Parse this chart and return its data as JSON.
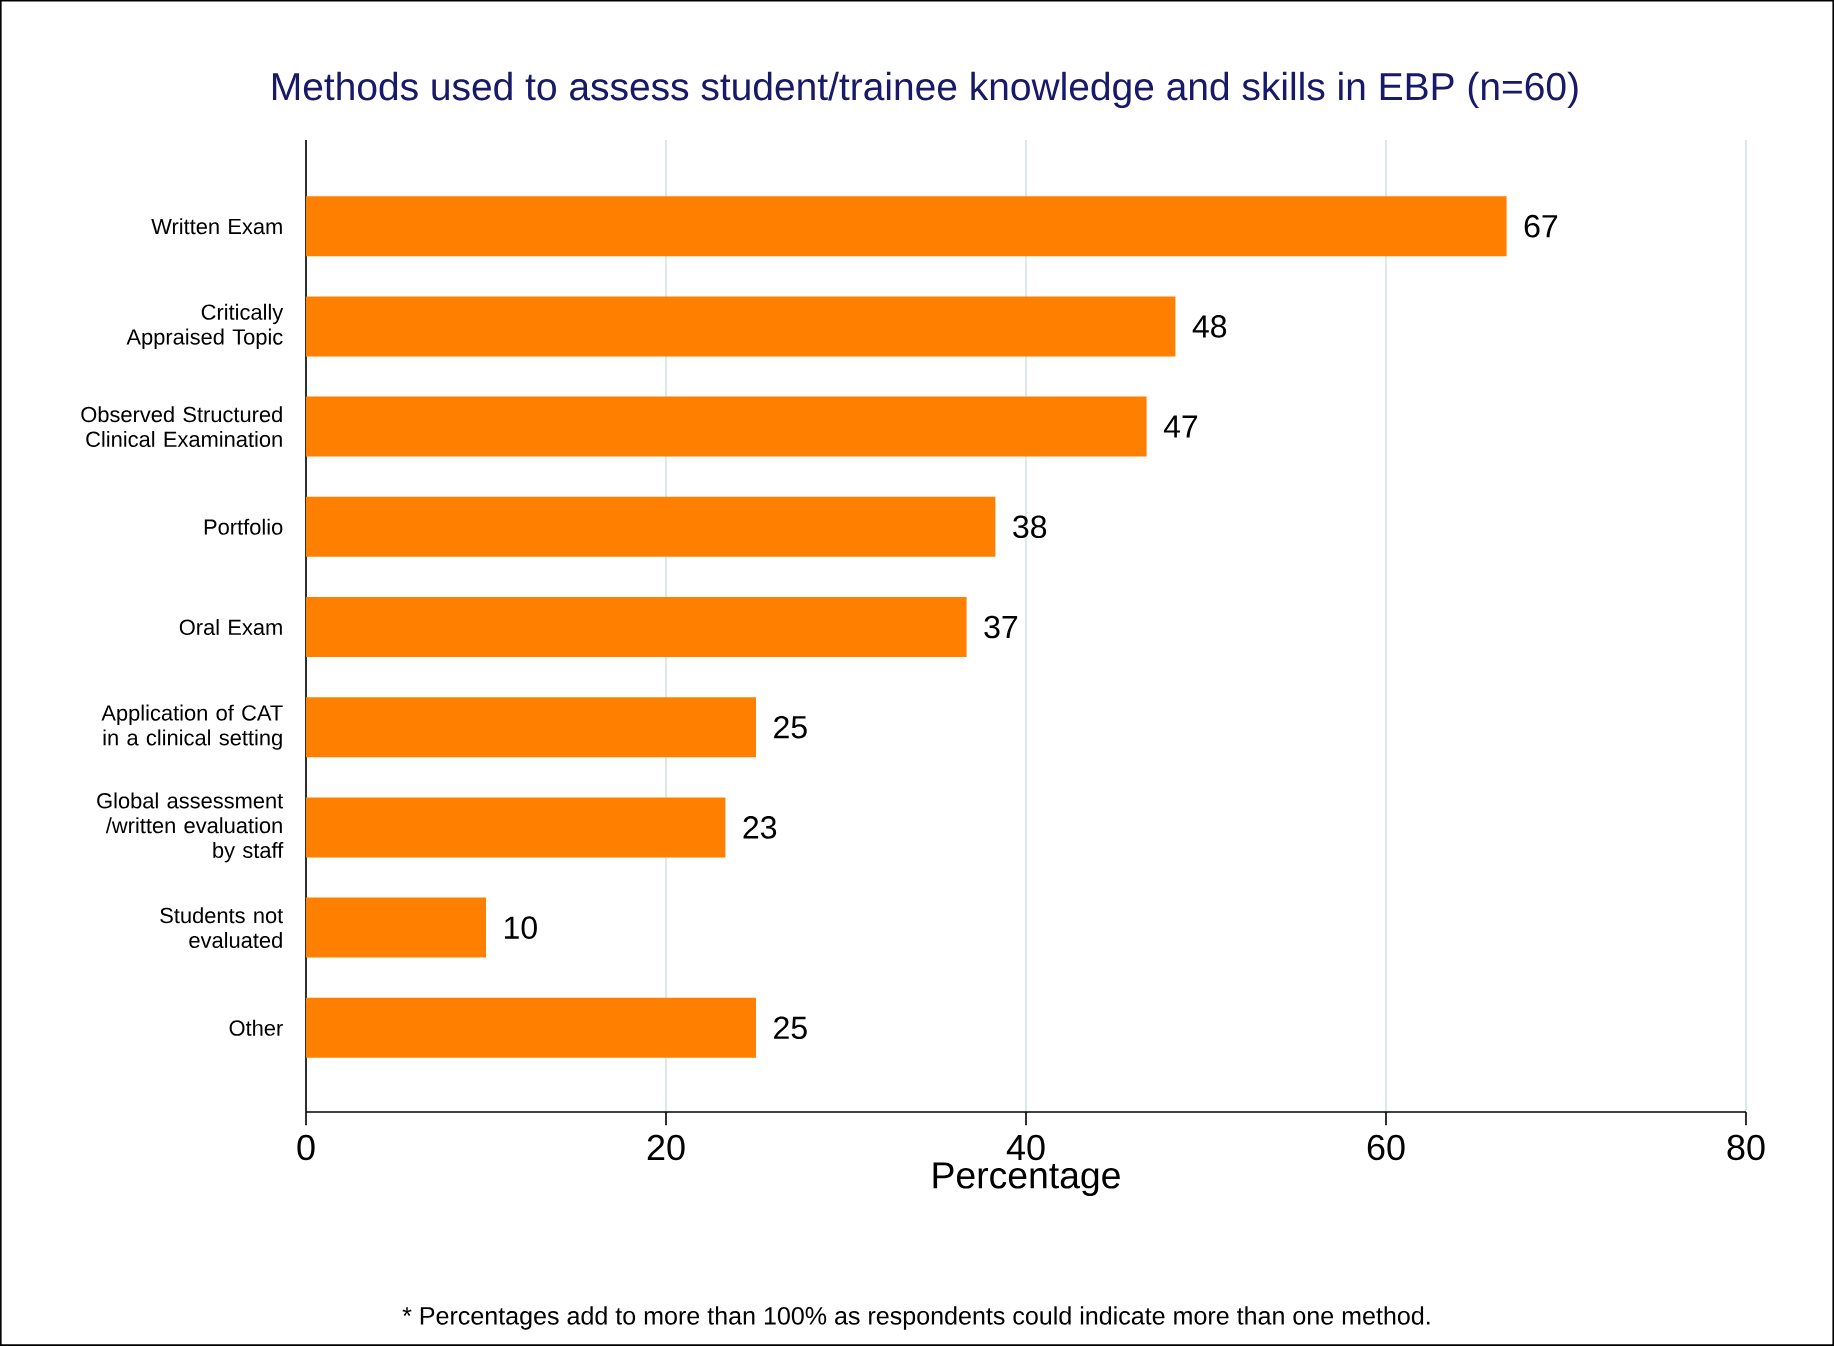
{
  "chart_data": {
    "type": "bar",
    "orientation": "horizontal",
    "title": "Methods used to assess student/trainee knowledge and skills in EBP (n=60)",
    "xlabel": "Percentage",
    "categories": [
      "Written Exam",
      "Critically Appraised Topic",
      "Observed Structured Clinical Examination",
      "Portfolio",
      "Oral Exam",
      "Application of CAT in a clinical setting",
      "Global assessment /written evaluation by staff",
      "Students not evaluated",
      "Other"
    ],
    "values": [
      66.7,
      48.3,
      46.7,
      38.3,
      36.7,
      25,
      23.3,
      10,
      25
    ],
    "value_labels": [
      "67",
      "48",
      "47",
      "38",
      "37",
      "25",
      "23",
      "10",
      "25"
    ],
    "color": "#ff8000",
    "xlim": [
      0,
      80
    ],
    "xticks": [
      0,
      20,
      40,
      60,
      80
    ],
    "grid": "x",
    "annotations": [
      "* Percentages add to more than 100% as respondents could indicate more than one method."
    ]
  }
}
